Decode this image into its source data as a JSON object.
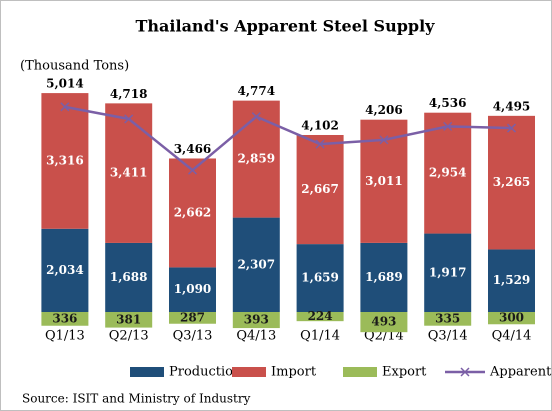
{
  "chart_data": {
    "type": "bar",
    "title": "Thailand's Apparent Steel Supply",
    "unit": "(Thousand Tons)",
    "source": "Source: ISIT and Ministry of Industry",
    "categories": [
      "Q1/13",
      "Q2/13",
      "Q3/13",
      "Q4/13",
      "Q1/14",
      "Q2/14",
      "Q3/14",
      "Q4/14"
    ],
    "ylim": [
      -440,
      5670
    ],
    "series": [
      {
        "name": "Production",
        "color": "#1f4e79",
        "values": [
          2034,
          1688,
          1090,
          2307,
          1659,
          1689,
          1917,
          1529
        ],
        "value_labels": [
          "2,034",
          "1,688",
          "1,090",
          "2,307",
          "1,659",
          "1,689",
          "1,917",
          "1,529"
        ]
      },
      {
        "name": "Import",
        "color": "#c9504b",
        "values": [
          3316,
          3411,
          2662,
          2859,
          2667,
          3011,
          2954,
          3265
        ],
        "value_labels": [
          "3,316",
          "3,411",
          "2,662",
          "2,859",
          "2,667",
          "3,011",
          "2,954",
          "3,265"
        ]
      },
      {
        "name": "Export",
        "color": "#9bbb59",
        "values": [
          336,
          381,
          287,
          393,
          224,
          493,
          335,
          300
        ]
      },
      {
        "name": "Apparent",
        "color": "#7b5fa6",
        "type": "line",
        "values": [
          5014,
          4718,
          3466,
          4774,
          4102,
          4206,
          4536,
          4495
        ],
        "value_labels": [
          "5,014",
          "4,718",
          "3,466",
          "4,774",
          "4,102",
          "4,206",
          "4,536",
          "4,495"
        ]
      }
    ]
  }
}
